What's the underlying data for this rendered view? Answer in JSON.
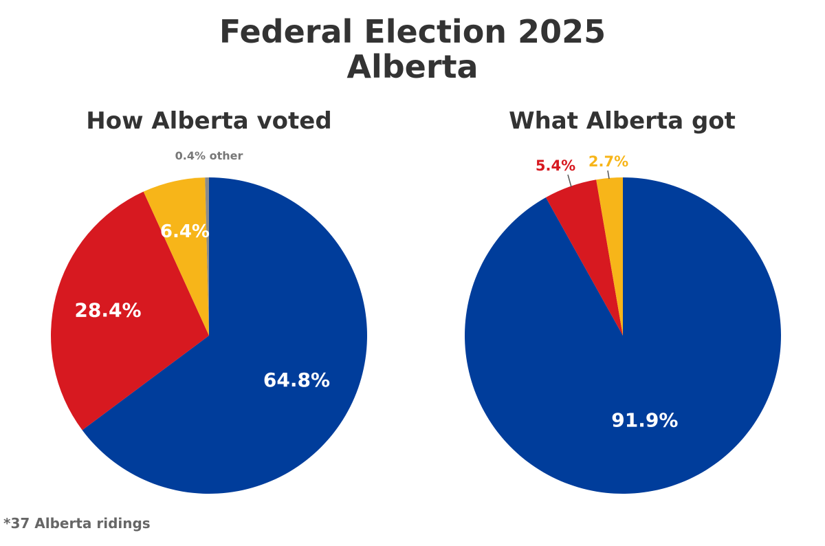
{
  "title": {
    "line1": "Federal Election 2025",
    "line2": "Alberta"
  },
  "footnote": "*37 Alberta ridings",
  "chart_data": [
    {
      "type": "pie",
      "title": "How Alberta voted",
      "start": "12 o'clock, clockwise",
      "slices": [
        {
          "value": 64.8,
          "label": "64.8%",
          "color": "#003d9b",
          "label_color": "#ffffff"
        },
        {
          "value": 28.4,
          "label": "28.4%",
          "color": "#d71920",
          "label_color": "#ffffff"
        },
        {
          "value": 6.4,
          "label": "6.4%",
          "color": "#f7b519",
          "label_color": "#ffffff"
        },
        {
          "value": 0.4,
          "label": "0.4% other",
          "color": "#8c8c8c",
          "label_color": "#777777"
        }
      ]
    },
    {
      "type": "pie",
      "title": "What Alberta got",
      "start": "12 o'clock, clockwise",
      "slices": [
        {
          "value": 91.9,
          "label": "91.9%",
          "color": "#003d9b",
          "label_color": "#ffffff"
        },
        {
          "value": 5.4,
          "label": "5.4%",
          "color": "#d71920",
          "label_color": "#d71920"
        },
        {
          "value": 2.7,
          "label": "2.7%",
          "color": "#f7b519",
          "label_color": "#f7b519"
        }
      ]
    }
  ]
}
